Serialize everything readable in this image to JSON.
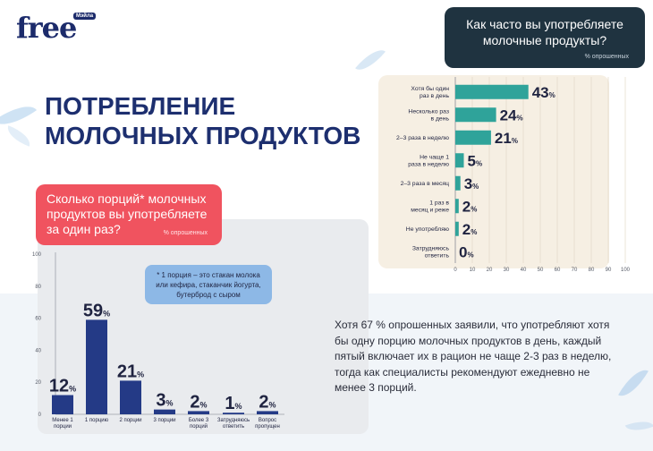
{
  "brand": {
    "logo": "free",
    "badge": "Мэйла"
  },
  "page_title": "ПОТРЕБЛЕНИЕ МОЛОЧНЫХ ПРОДУКТОВ",
  "right_chart_header": {
    "title": "Как часто вы употребляете молочные продукты?",
    "subtitle": "% опрошенных"
  },
  "left_chart_header": {
    "title": "Сколько порций* молочных продуктов вы употребляете за один раз?",
    "subtitle": "% опрошенных"
  },
  "note": "* 1 порция – это стакан молока или кефира, стаканчик йогурта, бутерброд с сыром",
  "summary": "Хотя 67 % опрошенных заявили, что употребляют хотя бы одну порцию молочных продуктов в день, каждый пятый включает их в рацион не чаще 2-3 раз в неделю, тогда как специалисты рекомендуют ежедневно не менее 3 порций.",
  "colors": {
    "bar_right": "#2fa39a",
    "bar_left": "#243a86",
    "accent_red": "#f0535f",
    "dark": "#1f3340"
  },
  "chart_data": [
    {
      "type": "bar",
      "orientation": "horizontal",
      "title": "Как часто вы употребляете молочные продукты?",
      "subtitle": "% опрошенных",
      "categories": [
        "Хотя бы один раз в день",
        "Несколько раз в день",
        "2–3 раза в неделю",
        "Не чаще 1 раза в неделю",
        "2–3 раза в месяц",
        "1 раз в месяц и реже",
        "Не употребляю",
        "Затрудняюсь ответить"
      ],
      "values": [
        43,
        24,
        21,
        5,
        3,
        2,
        2,
        0
      ],
      "value_suffix": "%",
      "xlim": [
        0,
        100
      ],
      "xticks": [
        0,
        10,
        20,
        30,
        40,
        50,
        60,
        70,
        80,
        90,
        100
      ],
      "grid": true
    },
    {
      "type": "bar",
      "orientation": "vertical",
      "title": "Сколько порций* молочных продуктов вы употребляете за один раз?",
      "subtitle": "% опрошенных",
      "categories": [
        "Менее 1 порции",
        "1 порцию",
        "2 порции",
        "3 порции",
        "Более 3 порций",
        "Затрудняюсь ответить",
        "Вопрос пропущен"
      ],
      "values": [
        12,
        59,
        21,
        3,
        2,
        1,
        2
      ],
      "value_suffix": "%",
      "ylim": [
        0,
        100
      ],
      "yticks": [
        0,
        20,
        40,
        60,
        80,
        100
      ],
      "grid": false
    }
  ]
}
